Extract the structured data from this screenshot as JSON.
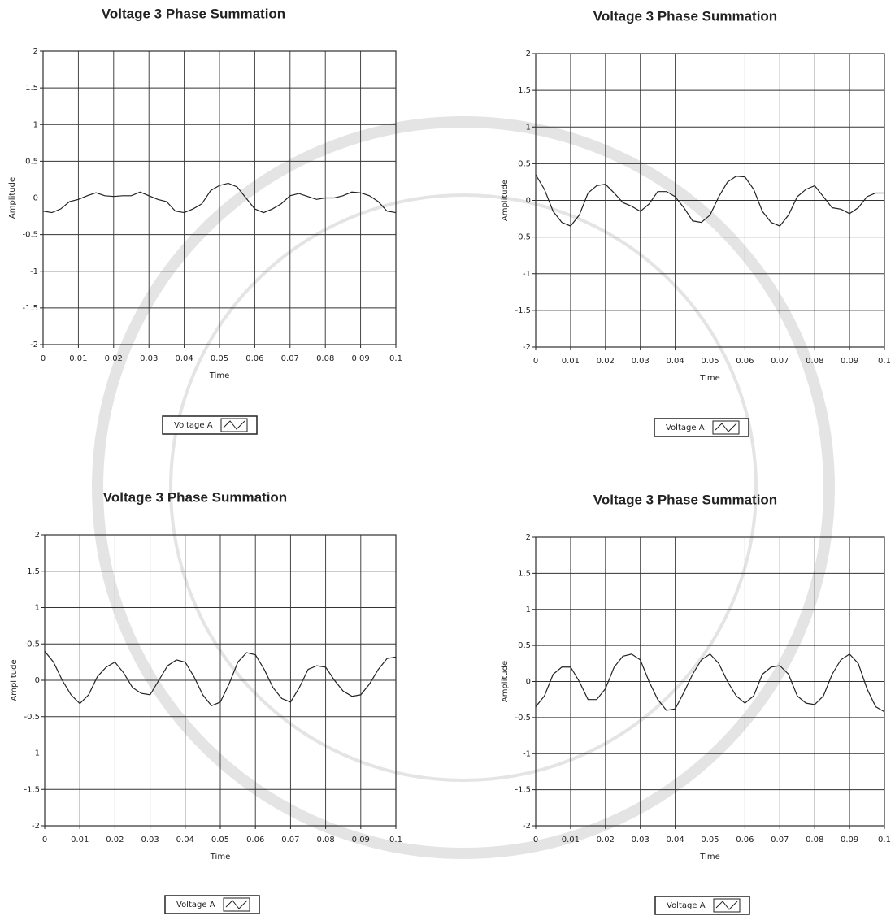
{
  "chart_data": [
    {
      "type": "line",
      "title": "Voltage 3 Phase Summation",
      "x_label": "Time",
      "y_label": "Amplitude",
      "x": [
        0,
        0.0025,
        0.005,
        0.0075,
        0.01,
        0.0125,
        0.015,
        0.0175,
        0.02,
        0.0225,
        0.025,
        0.0275,
        0.03,
        0.0325,
        0.035,
        0.0375,
        0.04,
        0.0425,
        0.045,
        0.0475,
        0.05,
        0.0525,
        0.055,
        0.0575,
        0.06,
        0.0625,
        0.065,
        0.0675,
        0.07,
        0.0725,
        0.075,
        0.0775,
        0.08,
        0.0825,
        0.085,
        0.0875,
        0.09,
        0.0925,
        0.095,
        0.0975,
        0.1
      ],
      "series": [
        {
          "name": "Voltage A",
          "color": "#222222",
          "values": [
            -0.18,
            -0.2,
            -0.15,
            -0.05,
            -0.02,
            0.03,
            0.07,
            0.03,
            0.02,
            0.03,
            0.03,
            0.08,
            0.03,
            -0.02,
            -0.05,
            -0.18,
            -0.2,
            -0.15,
            -0.08,
            0.1,
            0.17,
            0.2,
            0.15,
            0,
            -0.15,
            -0.2,
            -0.15,
            -0.08,
            0.03,
            0.06,
            0.02,
            -0.02,
            0,
            0,
            0.03,
            0.08,
            0.07,
            0.03,
            -0.05,
            -0.18,
            -0.2
          ]
        }
      ],
      "xlim": [
        0,
        0.1
      ],
      "ylim": [
        -2,
        2
      ],
      "xticks": [
        0,
        0.01,
        0.02,
        0.03,
        0.04,
        0.05,
        0.06,
        0.07,
        0.08,
        0.09,
        0.1
      ],
      "yticks": [
        2,
        1.5,
        1,
        0.5,
        0,
        -0.5,
        -1,
        -1.5,
        -2
      ],
      "grid": true
    },
    {
      "type": "line",
      "title": "Voltage 3 Phase Summation",
      "x_label": "Time",
      "y_label": "Amplitude",
      "x": [
        0,
        0.0025,
        0.005,
        0.0075,
        0.01,
        0.0125,
        0.015,
        0.0175,
        0.02,
        0.0225,
        0.025,
        0.0275,
        0.03,
        0.0325,
        0.035,
        0.0375,
        0.04,
        0.0425,
        0.045,
        0.0475,
        0.05,
        0.0525,
        0.055,
        0.0575,
        0.06,
        0.0625,
        0.065,
        0.0675,
        0.07,
        0.0725,
        0.075,
        0.0775,
        0.08,
        0.0825,
        0.085,
        0.0875,
        0.09,
        0.0925,
        0.095,
        0.0975,
        0.1
      ],
      "series": [
        {
          "name": "Voltage A",
          "color": "#222222",
          "values": [
            0.35,
            0.15,
            -0.15,
            -0.3,
            -0.35,
            -0.2,
            0.1,
            0.2,
            0.22,
            0.1,
            -0.03,
            -0.08,
            -0.15,
            -0.05,
            0.12,
            0.12,
            0.05,
            -0.1,
            -0.28,
            -0.3,
            -0.2,
            0.05,
            0.25,
            0.33,
            0.32,
            0.15,
            -0.15,
            -0.3,
            -0.35,
            -0.2,
            0.05,
            0.15,
            0.2,
            0.05,
            -0.1,
            -0.12,
            -0.18,
            -0.1,
            0.05,
            0.1,
            0.1
          ]
        }
      ],
      "xlim": [
        0,
        0.1
      ],
      "ylim": [
        -2,
        2
      ],
      "xticks": [
        0,
        0.01,
        0.02,
        0.03,
        0.04,
        0.05,
        0.06,
        0.07,
        0.08,
        0.09,
        0.1
      ],
      "yticks": [
        2,
        1.5,
        1,
        0.5,
        0,
        -0.5,
        -1,
        -1.5,
        -2
      ],
      "grid": true
    },
    {
      "type": "line",
      "title": "Voltage 3 Phase Summation",
      "x_label": "Time",
      "y_label": "Amplitude",
      "x": [
        0,
        0.0025,
        0.005,
        0.0075,
        0.01,
        0.0125,
        0.015,
        0.0175,
        0.02,
        0.0225,
        0.025,
        0.0275,
        0.03,
        0.0325,
        0.035,
        0.0375,
        0.04,
        0.0425,
        0.045,
        0.0475,
        0.05,
        0.0525,
        0.055,
        0.0575,
        0.06,
        0.0625,
        0.065,
        0.0675,
        0.07,
        0.0725,
        0.075,
        0.0775,
        0.08,
        0.0825,
        0.085,
        0.0875,
        0.09,
        0.0925,
        0.095,
        0.0975,
        0.1
      ],
      "series": [
        {
          "name": "Voltage A",
          "color": "#222222",
          "values": [
            0.4,
            0.25,
            0,
            -0.2,
            -0.32,
            -0.2,
            0.05,
            0.18,
            0.25,
            0.1,
            -0.1,
            -0.18,
            -0.2,
            0,
            0.2,
            0.28,
            0.25,
            0.05,
            -0.2,
            -0.35,
            -0.3,
            -0.05,
            0.25,
            0.38,
            0.35,
            0.15,
            -0.1,
            -0.25,
            -0.3,
            -0.1,
            0.15,
            0.2,
            0.18,
            0,
            -0.15,
            -0.22,
            -0.2,
            -0.05,
            0.15,
            0.3,
            0.32
          ]
        }
      ],
      "xlim": [
        0,
        0.1
      ],
      "ylim": [
        -2,
        2
      ],
      "xticks": [
        0,
        0.01,
        0.02,
        0.03,
        0.04,
        0.05,
        0.06,
        0.07,
        0.08,
        0.09,
        0.1
      ],
      "yticks": [
        2,
        1.5,
        1,
        0.5,
        0,
        -0.5,
        -1,
        -1.5,
        -2
      ],
      "grid": true
    },
    {
      "type": "line",
      "title": "Voltage 3 Phase Summation",
      "x_label": "Time",
      "y_label": "Amplitude",
      "x": [
        0,
        0.0025,
        0.005,
        0.0075,
        0.01,
        0.0125,
        0.015,
        0.0175,
        0.02,
        0.0225,
        0.025,
        0.0275,
        0.03,
        0.0325,
        0.035,
        0.0375,
        0.04,
        0.0425,
        0.045,
        0.0475,
        0.05,
        0.0525,
        0.055,
        0.0575,
        0.06,
        0.0625,
        0.065,
        0.0675,
        0.07,
        0.0725,
        0.075,
        0.0775,
        0.08,
        0.0825,
        0.085,
        0.0875,
        0.09,
        0.0925,
        0.095,
        0.0975,
        0.1
      ],
      "series": [
        {
          "name": "Voltage A",
          "color": "#222222",
          "values": [
            -0.35,
            -0.2,
            0.1,
            0.2,
            0.2,
            0,
            -0.25,
            -0.25,
            -0.1,
            0.2,
            0.35,
            0.38,
            0.3,
            0,
            -0.25,
            -0.4,
            -0.38,
            -0.15,
            0.1,
            0.3,
            0.38,
            0.25,
            0,
            -0.2,
            -0.3,
            -0.2,
            0.1,
            0.2,
            0.22,
            0.1,
            -0.2,
            -0.3,
            -0.32,
            -0.2,
            0.1,
            0.3,
            0.38,
            0.25,
            -0.1,
            -0.35,
            -0.42
          ]
        }
      ],
      "xlim": [
        0,
        0.1
      ],
      "ylim": [
        -2,
        2
      ],
      "xticks": [
        0,
        0.01,
        0.02,
        0.03,
        0.04,
        0.05,
        0.06,
        0.07,
        0.08,
        0.09,
        0.1
      ],
      "yticks": [
        2,
        1.5,
        1,
        0.5,
        0,
        -0.5,
        -1,
        -1.5,
        -2
      ],
      "grid": true
    }
  ]
}
